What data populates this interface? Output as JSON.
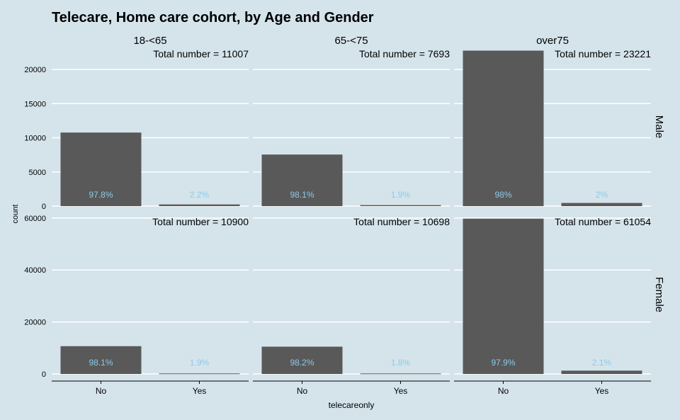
{
  "chart_data": {
    "type": "bar",
    "title": "Telecare, Home care cohort, by Age and Gender",
    "xlabel": "telecareonly",
    "ylabel": "count",
    "categories": [
      "No",
      "Yes"
    ],
    "grid": true,
    "colors": {
      "background": "#d5e4eb",
      "bar": "#595959",
      "label": "#8ec9e8",
      "grid": "#ffffff",
      "text": "#000000"
    },
    "columns": [
      "18-<65",
      "65-<75",
      "over75"
    ],
    "rows": [
      {
        "name": "Male",
        "ylim": [
          0,
          23221
        ],
        "y_ticks": [
          "0",
          "5000",
          "10000",
          "15000",
          "20000"
        ],
        "panels": [
          {
            "total_label": "Total number = 11007",
            "values": [
              10765,
              242
            ],
            "labels": [
              "97.8%",
              "2.2%"
            ]
          },
          {
            "total_label": "Total number = 7693",
            "values": [
              7547,
              146
            ],
            "labels": [
              "98.1%",
              "1.9%"
            ]
          },
          {
            "total_label": "Total number = 23221",
            "values": [
              22757,
              464
            ],
            "labels": [
              "98%",
              "2%"
            ]
          }
        ]
      },
      {
        "name": "Female",
        "ylim": [
          0,
          61054
        ],
        "y_ticks": [
          "0",
          "20000",
          "40000",
          "60000"
        ],
        "panels": [
          {
            "total_label": "Total number = 10900",
            "values": [
              10693,
              207
            ],
            "labels": [
              "98.1%",
              "1.9%"
            ]
          },
          {
            "total_label": "Total number = 10698",
            "values": [
              10505,
              193
            ],
            "labels": [
              "98.2%",
              "1.8%"
            ]
          },
          {
            "total_label": "Total number = 61054",
            "values": [
              59772,
              1282
            ],
            "labels": [
              "97.9%",
              "2.1%"
            ]
          }
        ]
      }
    ]
  }
}
